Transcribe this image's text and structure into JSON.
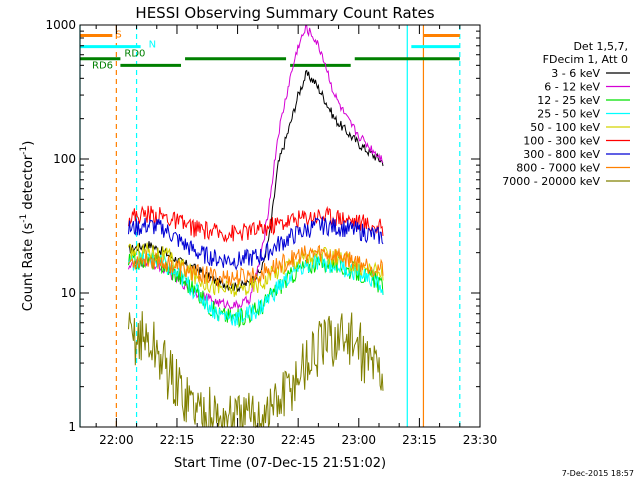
{
  "chart_data": {
    "type": "line",
    "title": "HESSI Observing Summary Count Rates",
    "xlabel": "Start Time (07-Dec-15 21:51:02)",
    "ylabel_main": "Count Rate (s",
    "ylabel_sup1": "-1",
    "ylabel_mid": " detector",
    "ylabel_sup2": "-1",
    "ylabel_end": ")",
    "yscale": "log",
    "ylim": [
      1,
      1000
    ],
    "xlim": [
      "21:51",
      "23:30"
    ],
    "x_ticks": [
      "22:00",
      "22:15",
      "22:30",
      "22:45",
      "23:00",
      "23:15",
      "23:30"
    ],
    "y_ticks": [
      "1",
      "10",
      "100",
      "1000"
    ],
    "footer_date": "7-Dec-2015 18:57",
    "legend_header": [
      "Det 1,5,7,",
      "FDecim 1, Att 0"
    ],
    "series": [
      {
        "name": "3 - 6 keV",
        "color": "#000000",
        "points": [
          [
            "22:03",
            21
          ],
          [
            "22:08",
            23
          ],
          [
            "22:12",
            20
          ],
          [
            "22:16",
            17
          ],
          [
            "22:20",
            15
          ],
          [
            "22:25",
            12
          ],
          [
            "22:30",
            11
          ],
          [
            "22:33",
            12
          ],
          [
            "22:36",
            15
          ],
          [
            "22:38",
            28
          ],
          [
            "22:40",
            90
          ],
          [
            "22:43",
            180
          ],
          [
            "22:45",
            300
          ],
          [
            "22:47",
            430
          ],
          [
            "22:49",
            380
          ],
          [
            "22:51",
            300
          ],
          [
            "22:54",
            200
          ],
          [
            "22:57",
            160
          ],
          [
            "23:00",
            130
          ],
          [
            "23:03",
            110
          ],
          [
            "23:06",
            95
          ]
        ]
      },
      {
        "name": "6 - 12 keV",
        "color": "#d400d4",
        "points": [
          [
            "22:03",
            16
          ],
          [
            "22:08",
            17
          ],
          [
            "22:12",
            15
          ],
          [
            "22:16",
            12
          ],
          [
            "22:20",
            10
          ],
          [
            "22:25",
            8.5
          ],
          [
            "22:30",
            8
          ],
          [
            "22:33",
            9
          ],
          [
            "22:36",
            20
          ],
          [
            "22:38",
            50
          ],
          [
            "22:40",
            150
          ],
          [
            "22:43",
            400
          ],
          [
            "22:45",
            700
          ],
          [
            "22:47",
            950
          ],
          [
            "22:49",
            800
          ],
          [
            "22:51",
            600
          ],
          [
            "22:54",
            300
          ],
          [
            "22:57",
            200
          ],
          [
            "23:00",
            150
          ],
          [
            "23:03",
            120
          ],
          [
            "23:06",
            100
          ]
        ]
      },
      {
        "name": "12 - 25 keV",
        "color": "#00e000",
        "points": [
          [
            "22:03",
            17
          ],
          [
            "22:08",
            18
          ],
          [
            "22:12",
            16
          ],
          [
            "22:16",
            13
          ],
          [
            "22:20",
            10
          ],
          [
            "22:25",
            7
          ],
          [
            "22:30",
            6.5
          ],
          [
            "22:33",
            7
          ],
          [
            "22:36",
            8
          ],
          [
            "22:40",
            11
          ],
          [
            "22:45",
            15
          ],
          [
            "22:50",
            17
          ],
          [
            "22:55",
            16
          ],
          [
            "23:00",
            14
          ],
          [
            "23:03",
            13
          ],
          [
            "23:06",
            11
          ]
        ]
      },
      {
        "name": "25 - 50 keV",
        "color": "#00ffff",
        "points": [
          [
            "22:03",
            17
          ],
          [
            "22:08",
            18
          ],
          [
            "22:12",
            16
          ],
          [
            "22:16",
            13
          ],
          [
            "22:20",
            10
          ],
          [
            "22:25",
            7
          ],
          [
            "22:30",
            6.5
          ],
          [
            "22:33",
            7
          ],
          [
            "22:36",
            8
          ],
          [
            "22:40",
            11
          ],
          [
            "22:45",
            15
          ],
          [
            "22:50",
            17
          ],
          [
            "22:55",
            16
          ],
          [
            "23:00",
            14
          ],
          [
            "23:03",
            13
          ],
          [
            "23:06",
            11
          ]
        ]
      },
      {
        "name": "50 - 100 keV",
        "color": "#d4d400",
        "points": [
          [
            "22:03",
            20
          ],
          [
            "22:08",
            21
          ],
          [
            "22:12",
            19
          ],
          [
            "22:16",
            16
          ],
          [
            "22:20",
            13
          ],
          [
            "22:25",
            11
          ],
          [
            "22:30",
            10.5
          ],
          [
            "22:36",
            12
          ],
          [
            "22:40",
            15
          ],
          [
            "22:45",
            18
          ],
          [
            "22:50",
            19
          ],
          [
            "22:55",
            18
          ],
          [
            "23:00",
            16
          ],
          [
            "23:06",
            14
          ]
        ]
      },
      {
        "name": "100 - 300 keV",
        "color": "#ff0000",
        "points": [
          [
            "22:03",
            37
          ],
          [
            "22:08",
            39
          ],
          [
            "22:12",
            37
          ],
          [
            "22:16",
            33
          ],
          [
            "22:20",
            30
          ],
          [
            "22:25",
            28
          ],
          [
            "22:30",
            28
          ],
          [
            "22:36",
            30
          ],
          [
            "22:40",
            33
          ],
          [
            "22:45",
            36
          ],
          [
            "22:50",
            38
          ],
          [
            "22:55",
            37
          ],
          [
            "23:00",
            34
          ],
          [
            "23:06",
            30
          ]
        ]
      },
      {
        "name": "300 - 800 keV",
        "color": "#0000d4",
        "points": [
          [
            "22:03",
            30
          ],
          [
            "22:08",
            32
          ],
          [
            "22:12",
            30
          ],
          [
            "22:16",
            24
          ],
          [
            "22:20",
            20
          ],
          [
            "22:25",
            18
          ],
          [
            "22:30",
            17.5
          ],
          [
            "22:36",
            19
          ],
          [
            "22:40",
            23
          ],
          [
            "22:45",
            28
          ],
          [
            "22:50",
            32
          ],
          [
            "22:55",
            31
          ],
          [
            "23:00",
            29
          ],
          [
            "23:06",
            26
          ]
        ]
      },
      {
        "name": "800 - 7000 keV",
        "color": "#ff8000",
        "points": [
          [
            "22:03",
            17
          ],
          [
            "22:08",
            18
          ],
          [
            "22:12",
            17
          ],
          [
            "22:16",
            15
          ],
          [
            "22:20",
            14
          ],
          [
            "22:25",
            13
          ],
          [
            "22:30",
            13
          ],
          [
            "22:36",
            14
          ],
          [
            "22:40",
            16
          ],
          [
            "22:45",
            19
          ],
          [
            "22:50",
            20
          ],
          [
            "22:55",
            19
          ],
          [
            "23:00",
            17
          ],
          [
            "23:06",
            15
          ]
        ]
      },
      {
        "name": "7000 - 20000 keV",
        "color": "#808000",
        "points": [
          [
            "22:03",
            4.5
          ],
          [
            "22:06",
            4.8
          ],
          [
            "22:09",
            4
          ],
          [
            "22:11",
            3.3
          ],
          [
            "22:13",
            2.5
          ],
          [
            "22:15",
            2
          ],
          [
            "22:18",
            1.6
          ],
          [
            "22:21",
            1.3
          ],
          [
            "22:25",
            1.15
          ],
          [
            "22:30",
            1.1
          ],
          [
            "22:35",
            1.15
          ],
          [
            "22:40",
            1.5
          ],
          [
            "22:43",
            2
          ],
          [
            "22:47",
            3
          ],
          [
            "22:51",
            4
          ],
          [
            "22:54",
            4.5
          ],
          [
            "22:57",
            4.8
          ],
          [
            "23:00",
            3.8
          ],
          [
            "23:03",
            3
          ],
          [
            "23:06",
            2.6
          ]
        ]
      }
    ],
    "flags": [
      {
        "label": "S",
        "color": "#ff8000",
        "y": 835,
        "segments": [
          [
            "21:51",
            "21:59"
          ],
          [
            "23:16",
            "23:25"
          ]
        ]
      },
      {
        "label": "N",
        "color": "#00ffff",
        "y": 690,
        "segments": [
          [
            "21:51",
            "22:06"
          ],
          [
            "23:13",
            "23:25"
          ]
        ]
      },
      {
        "label": "RD0",
        "color": "#008000",
        "y": 560,
        "segments": [
          [
            "21:51",
            "22:01"
          ],
          [
            "22:17",
            "22:42"
          ],
          [
            "22:59",
            "23:25"
          ]
        ]
      },
      {
        "label": "RD6",
        "color": "#008000",
        "y": 500,
        "segments": [
          [
            "22:01",
            "22:16"
          ],
          [
            "22:43",
            "22:58"
          ]
        ]
      }
    ],
    "vlines": [
      {
        "t": "21:51",
        "color": "#00ffff",
        "style": "solid"
      },
      {
        "t": "22:00",
        "color": "#ff8000",
        "style": "dashed"
      },
      {
        "t": "22:05",
        "color": "#00ffff",
        "style": "dashed"
      },
      {
        "t": "23:12",
        "color": "#00ffff",
        "style": "solid"
      },
      {
        "t": "23:16",
        "color": "#ff8000",
        "style": "solid"
      },
      {
        "t": "23:25",
        "color": "#00ffff",
        "style": "dashed"
      }
    ]
  }
}
